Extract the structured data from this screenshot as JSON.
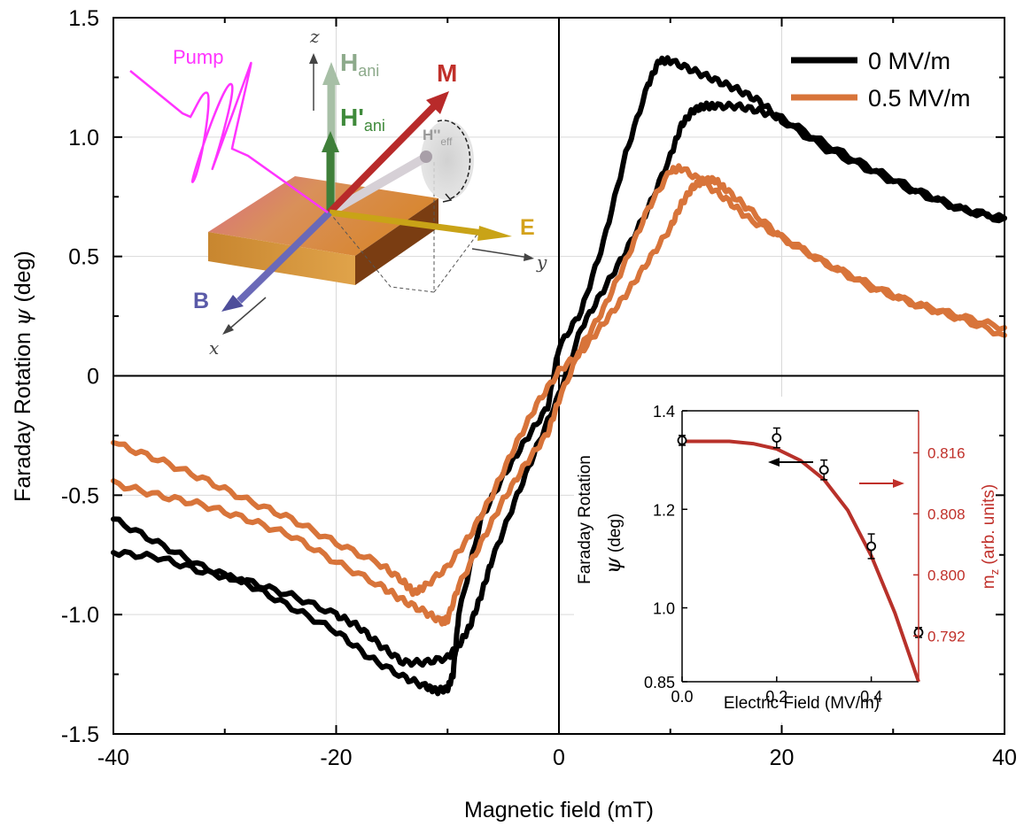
{
  "chart_data": {
    "type": "line",
    "xlabel": "Magnetic field (mT)",
    "ylabel_prefix": "Faraday Rotation ",
    "ylabel_symbol": "ψ",
    "ylabel_suffix": " (deg)",
    "xlim": [
      -40,
      40
    ],
    "ylim": [
      -1.5,
      1.5
    ],
    "x_ticks": [
      -40,
      -20,
      0,
      20,
      40
    ],
    "x_tick_labels": [
      "-40",
      "-20",
      "0",
      "20",
      "40"
    ],
    "y_ticks": [
      -1.5,
      -1.0,
      -0.5,
      0,
      0.5,
      1.0,
      1.5
    ],
    "y_tick_labels": [
      "-1.5",
      "-1.0",
      "-0.5",
      "0",
      "0.5",
      "1.0",
      "1.5"
    ],
    "grid": true,
    "legend_position": "top-right",
    "series": [
      {
        "name": "0 MV/m",
        "color": "#000000",
        "branches": [
          {
            "x": [
              -40,
              -36,
              -32,
              -28,
              -24,
              -20,
              -17,
              -14,
              -12,
              -11,
              -10,
              -9.5,
              -9,
              -7,
              -5,
              -3,
              -1,
              0,
              2,
              4,
              6,
              8,
              9,
              10,
              12,
              14,
              16,
              18,
              20,
              24,
              28,
              32,
              36,
              40
            ],
            "y": [
              -0.6,
              -0.7,
              -0.8,
              -0.87,
              -0.97,
              -1.07,
              -1.18,
              -1.26,
              -1.3,
              -1.32,
              -1.31,
              -1.25,
              -1.0,
              -0.6,
              -0.42,
              -0.27,
              -0.13,
              0.12,
              0.27,
              0.56,
              0.93,
              1.22,
              1.32,
              1.32,
              1.28,
              1.24,
              1.2,
              1.15,
              1.07,
              0.95,
              0.86,
              0.77,
              0.7,
              0.66
            ]
          },
          {
            "x": [
              40,
              36,
              32,
              28,
              24,
              20,
              18,
              16,
              14,
              13,
              12,
              11,
              10,
              8,
              6,
              4,
              2,
              0,
              -2,
              -4,
              -6,
              -7,
              -8,
              -9,
              -10,
              -12,
              -14,
              -16,
              -18,
              -20,
              -24,
              -28,
              -32,
              -36,
              -40
            ],
            "y": [
              0.65,
              0.7,
              0.78,
              0.87,
              0.97,
              1.08,
              1.11,
              1.13,
              1.13,
              1.13,
              1.11,
              1.05,
              0.92,
              0.7,
              0.52,
              0.36,
              0.2,
              -0.08,
              -0.3,
              -0.53,
              -0.77,
              -0.92,
              -1.05,
              -1.13,
              -1.18,
              -1.2,
              -1.2,
              -1.13,
              -1.05,
              -1.0,
              -0.92,
              -0.86,
              -0.82,
              -0.76,
              -0.74
            ]
          }
        ]
      },
      {
        "name": "0.5 MV/m",
        "color": "#D8743A",
        "branches": [
          {
            "x": [
              -40,
              -36,
              -32,
              -28,
              -24,
              -20,
              -16,
              -14,
              -12,
              -10.5,
              -10,
              -9,
              -7,
              -5,
              -3,
              -1,
              0,
              2,
              4,
              6,
              8,
              10,
              11,
              13,
              15,
              17,
              20,
              24,
              28,
              32,
              36,
              40
            ],
            "y": [
              -0.45,
              -0.5,
              -0.54,
              -0.6,
              -0.67,
              -0.78,
              -0.88,
              -0.94,
              -0.99,
              -1.03,
              -1.02,
              -0.88,
              -0.7,
              -0.52,
              -0.37,
              -0.24,
              -0.1,
              0.12,
              0.28,
              0.48,
              0.7,
              0.86,
              0.87,
              0.81,
              0.74,
              0.66,
              0.58,
              0.47,
              0.37,
              0.3,
              0.24,
              0.17
            ]
          },
          {
            "x": [
              40,
              36,
              32,
              28,
              24,
              20,
              17,
              15,
              14,
              13,
              12,
              11,
              10,
              8,
              6,
              4,
              2,
              0,
              -2,
              -4,
              -6,
              -8,
              -10,
              -12,
              -13,
              -14,
              -16,
              -20,
              -24,
              -28,
              -32,
              -36,
              -40
            ],
            "y": [
              0.2,
              0.25,
              0.3,
              0.38,
              0.47,
              0.58,
              0.7,
              0.78,
              0.82,
              0.82,
              0.79,
              0.72,
              0.62,
              0.48,
              0.34,
              0.22,
              0.1,
              0.02,
              -0.12,
              -0.3,
              -0.5,
              -0.67,
              -0.8,
              -0.88,
              -0.91,
              -0.86,
              -0.79,
              -0.7,
              -0.6,
              -0.52,
              -0.43,
              -0.35,
              -0.28
            ]
          }
        ]
      }
    ],
    "inset_diagram": {
      "pump_label": "Pump",
      "h_ani_label": "H",
      "h_ani_sub": "ani",
      "h_ani_prime_label": "H'",
      "h_ani_prime_sub": "ani",
      "m_label": "M",
      "h_eff_label": "H''",
      "h_eff_sub": "eff",
      "e_label": "E",
      "b_label": "B",
      "axis_x": "x",
      "axis_y": "y",
      "axis_z": "z",
      "colors": {
        "pump": "#FF33FF",
        "h_ani": "#8DAA8B",
        "h_ani_prime": "#3F8A3B",
        "m": "#C0302A",
        "e": "#D4A21C",
        "b": "#5A5AA8"
      }
    },
    "inset_chart": {
      "type": "scatter+line",
      "xlabel": "Electric Field (MV/m)",
      "ylabel_left_top": "Faraday Rotation",
      "ylabel_left_symbol": "ψ",
      "ylabel_left_unit": " (deg)",
      "ylabel_right": "m",
      "ylabel_right_sub": "z",
      "ylabel_right_unit": " (arb. units)",
      "xlim": [
        0,
        0.5
      ],
      "ylim_left": [
        0.85,
        1.4
      ],
      "ylim_right": [
        0.786,
        0.8215
      ],
      "x_ticks": [
        0.0,
        0.2,
        0.4
      ],
      "x_tick_labels": [
        "0.0",
        "0.2",
        "0.4"
      ],
      "y_left_ticks": [
        0.85,
        1.0,
        1.2,
        1.4
      ],
      "y_left_tick_labels": [
        "0.85",
        "1.0",
        "1.2",
        "1.4"
      ],
      "y_right_ticks": [
        0.792,
        0.8,
        0.808,
        0.816
      ],
      "y_right_tick_labels": [
        "0.792",
        "0.800",
        "0.808",
        "0.816"
      ],
      "points": {
        "x": [
          0.0,
          0.2,
          0.3,
          0.4,
          0.5
        ],
        "y": [
          1.34,
          1.345,
          1.28,
          1.125,
          0.95
        ],
        "err": [
          0.01,
          0.02,
          0.02,
          0.025,
          0.01
        ]
      },
      "fit_line": {
        "x": [
          0,
          0.05,
          0.1,
          0.15,
          0.2,
          0.25,
          0.3,
          0.35,
          0.4,
          0.45,
          0.5
        ],
        "y": [
          0.8175,
          0.8175,
          0.8175,
          0.8172,
          0.8165,
          0.815,
          0.8125,
          0.8085,
          0.8025,
          0.795,
          0.786
        ],
        "color": "#B8312A"
      },
      "right_axis_color": "#C0302A"
    }
  }
}
